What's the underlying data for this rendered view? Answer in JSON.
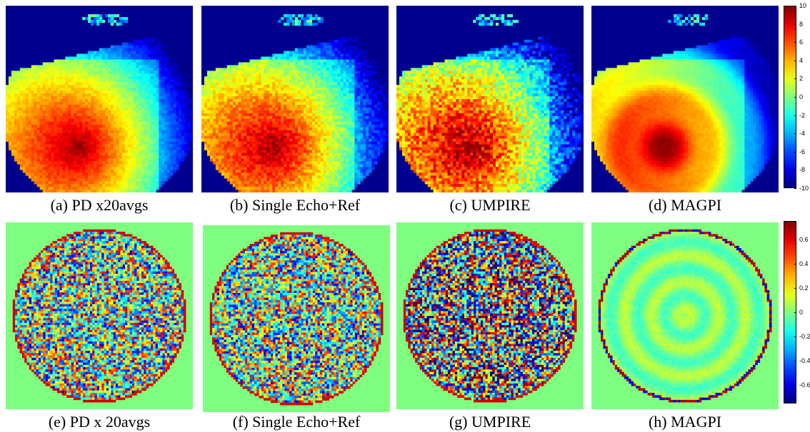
{
  "figure": {
    "row1": {
      "panels": [
        {
          "caption": "(a) PD x20avgs",
          "style": "smooth",
          "noise": 0.25
        },
        {
          "caption": "(b) Single Echo+Ref",
          "style": "smooth",
          "noise": 0.45
        },
        {
          "caption": "(c) UMPIRE",
          "style": "smooth",
          "noise": 0.85
        },
        {
          "caption": "(d) MAGPI",
          "style": "bands",
          "noise": 0.1
        }
      ],
      "colorbar": {
        "ticks": [
          "10",
          "8",
          "6",
          "4",
          "2",
          "0",
          "-2",
          "-4",
          "-6",
          "-8",
          "-10"
        ],
        "range": [
          -10,
          10
        ]
      }
    },
    "row2": {
      "panels": [
        {
          "caption": "(e) PD x 20avgs",
          "style": "noise",
          "noise": 0.75
        },
        {
          "caption": "(f) Single Echo+Ref",
          "style": "noise",
          "noise": 0.75
        },
        {
          "caption": "(g) UMPIRE",
          "style": "noise",
          "noise": 1.0
        },
        {
          "caption": "(h) MAGPI",
          "style": "rings",
          "noise": 0.12
        }
      ],
      "colorbar": {
        "ticks": [
          "0.6",
          "0.4",
          "0.2",
          "0",
          "-0.2",
          "-0.4",
          "-0.6"
        ],
        "range": [
          -0.75,
          0.75
        ]
      }
    },
    "colormap": "jet",
    "colors": {
      "outside_row1": "#00008f",
      "outside_row2": "#7fff7f"
    }
  }
}
